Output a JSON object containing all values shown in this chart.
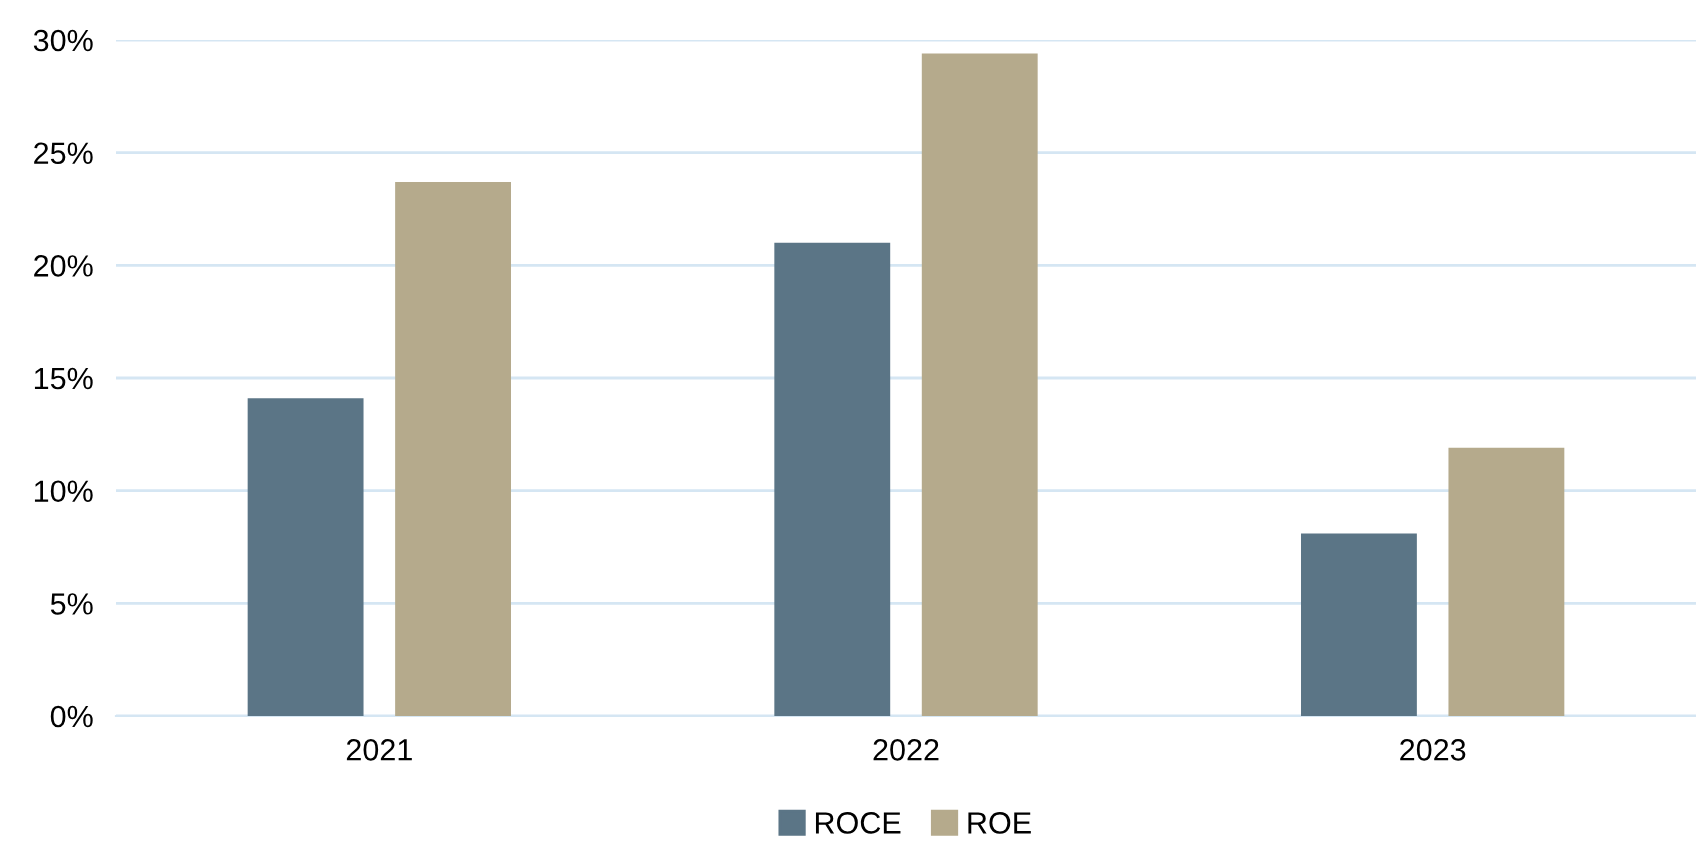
{
  "chart_data": {
    "type": "bar",
    "categories": [
      "2021",
      "2022",
      "2023"
    ],
    "series": [
      {
        "name": "ROCE",
        "color": "#5b7586",
        "values": [
          14.1,
          21.0,
          8.1
        ]
      },
      {
        "name": "ROE",
        "color": "#b5aa8c",
        "values": [
          23.7,
          29.4,
          11.9
        ]
      }
    ],
    "ylim": [
      0,
      30
    ],
    "yticks": [
      {
        "value": 0,
        "label": "0%"
      },
      {
        "value": 5,
        "label": "5%"
      },
      {
        "value": 10,
        "label": "10%"
      },
      {
        "value": 15,
        "label": "15%"
      },
      {
        "value": 20,
        "label": "20%"
      },
      {
        "value": 25,
        "label": "25%"
      },
      {
        "value": 30,
        "label": "30%"
      }
    ],
    "grid": "y",
    "legend": "bottom"
  }
}
